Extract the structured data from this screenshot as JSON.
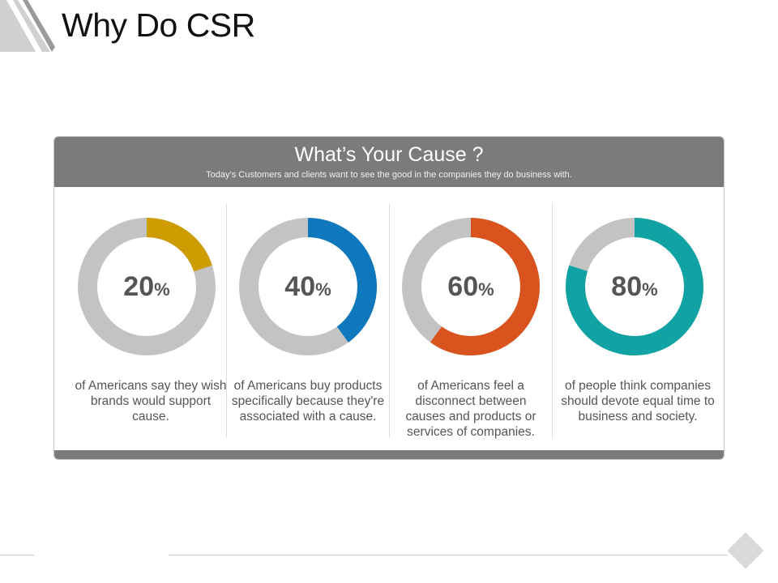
{
  "slide": {
    "title": "Why Do CSR"
  },
  "card": {
    "title": "What’s Your Cause ?",
    "subtitle": "Today’s Customers and clients want to see the good in the companies they do business with."
  },
  "colors": {
    "track": "#c3c3c3",
    "header": "#7b7b7b"
  },
  "chart_data": [
    {
      "type": "pie",
      "variant": "donut",
      "value": 20,
      "unit": "%",
      "color": "#cc9c00",
      "caption": "of Americans say they wish brands would support cause."
    },
    {
      "type": "pie",
      "variant": "donut",
      "value": 40,
      "unit": "%",
      "color": "#0f78bd",
      "caption": "of Americans buy products specifically because they're associated with a cause."
    },
    {
      "type": "pie",
      "variant": "donut",
      "value": 60,
      "unit": "%",
      "color": "#d8531e",
      "caption": "of Americans feel a disconnect between causes and products or services of companies."
    },
    {
      "type": "pie",
      "variant": "donut",
      "value": 80,
      "unit": "%",
      "color": "#11a3a3",
      "caption": "of people think companies should devote equal time to business and society."
    }
  ]
}
